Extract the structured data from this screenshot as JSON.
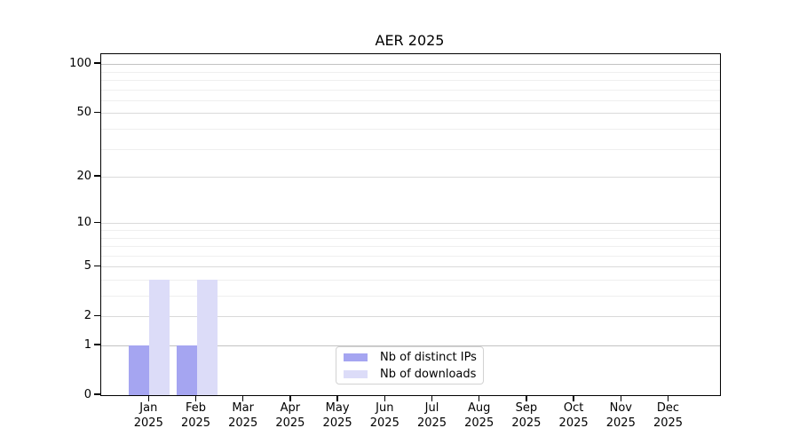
{
  "title": "AER 2025",
  "chart_data": {
    "type": "bar",
    "title": "AER 2025",
    "categories": [
      "Jan 2025",
      "Feb 2025",
      "Mar 2025",
      "Apr 2025",
      "May 2025",
      "Jun 2025",
      "Jul 2025",
      "Aug 2025",
      "Sep 2025",
      "Oct 2025",
      "Nov 2025",
      "Dec 2025"
    ],
    "series": [
      {
        "name": "Nb of distinct IPs",
        "color": "#a5a5f1",
        "values": [
          1,
          1,
          0,
          0,
          0,
          0,
          0,
          0,
          0,
          0,
          0,
          0
        ]
      },
      {
        "name": "Nb of downloads",
        "color": "#dcdcf8",
        "values": [
          4,
          4,
          0,
          0,
          0,
          0,
          0,
          0,
          0,
          0,
          0,
          0
        ]
      }
    ],
    "xlabel": "",
    "ylabel": "",
    "scale": "log1p",
    "ylim": [
      0,
      115
    ],
    "y_ticks": [
      0,
      1,
      2,
      5,
      10,
      20,
      50,
      100
    ],
    "y_minor_ticks": [
      3,
      4,
      6,
      7,
      8,
      9,
      30,
      40,
      60,
      70,
      80,
      90
    ],
    "grid": true,
    "legend_position": "lower center"
  },
  "legend": {
    "items": [
      {
        "label": "Nb of distinct IPs",
        "color": "#a5a5f1"
      },
      {
        "label": "Nb of downloads",
        "color": "#dcdcf8"
      }
    ]
  }
}
